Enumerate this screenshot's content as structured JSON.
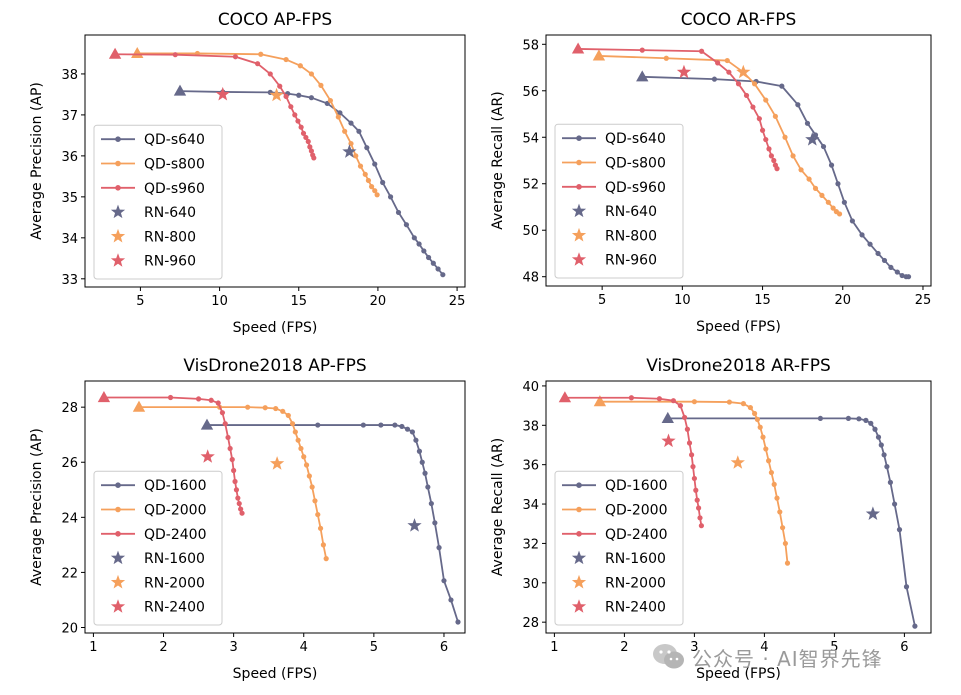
{
  "colors": {
    "s640": "#66698a",
    "s800": "#f5a05c",
    "s960": "#e0606b"
  },
  "watermark": "公众号 · AI智界先锋",
  "chart_data": [
    {
      "type": "line",
      "title": "COCO AP-FPS",
      "xlabel": "Speed (FPS)",
      "ylabel": "Average Precision (AP)",
      "xlim": [
        1.5,
        25.5
      ],
      "ylim": [
        32.8,
        38.95
      ],
      "xticks": [
        5,
        10,
        15,
        20,
        25
      ],
      "xtick_labels": [
        "5",
        "10",
        "15",
        "20",
        "25"
      ],
      "yticks": [
        33,
        34,
        35,
        36,
        37,
        38
      ],
      "ytick_labels": [
        "33",
        "34",
        "35",
        "36",
        "37",
        "38"
      ],
      "legend": "lower-left",
      "series": [
        {
          "name": "QD-s640",
          "color": "#66698a",
          "x": [
            7.5,
            10.2,
            13.2,
            14.3,
            15.0,
            15.8,
            16.8,
            17.6,
            18.3,
            18.8,
            19.3,
            19.8,
            20.3,
            20.8,
            21.3,
            21.8,
            22.3,
            22.6,
            22.9,
            23.2,
            23.5,
            23.8,
            24.1
          ],
          "y": [
            37.58,
            37.56,
            37.55,
            37.52,
            37.48,
            37.42,
            37.28,
            37.05,
            36.8,
            36.6,
            36.2,
            35.8,
            35.35,
            35.0,
            34.62,
            34.32,
            34.0,
            33.85,
            33.68,
            33.52,
            33.38,
            33.24,
            33.1
          ]
        },
        {
          "name": "QD-s800",
          "color": "#f5a05c",
          "x": [
            4.8,
            8.6,
            12.6,
            14.2,
            15.1,
            15.8,
            16.4,
            17.0,
            17.5,
            17.9,
            18.3,
            18.6,
            18.9,
            19.2,
            19.4,
            19.6,
            19.8,
            19.95
          ],
          "y": [
            38.5,
            38.5,
            38.48,
            38.35,
            38.2,
            38.0,
            37.72,
            37.35,
            36.95,
            36.6,
            36.3,
            36.0,
            35.75,
            35.55,
            35.4,
            35.25,
            35.15,
            35.05
          ]
        },
        {
          "name": "QD-s960",
          "color": "#e0606b",
          "x": [
            3.4,
            7.2,
            11.0,
            12.4,
            13.2,
            13.8,
            14.2,
            14.5,
            14.75,
            14.95,
            15.15,
            15.3,
            15.45,
            15.6,
            15.7,
            15.8,
            15.88,
            15.95
          ],
          "y": [
            38.48,
            38.47,
            38.42,
            38.25,
            38.0,
            37.7,
            37.45,
            37.2,
            37.0,
            36.85,
            36.7,
            36.55,
            36.45,
            36.35,
            36.22,
            36.12,
            36.02,
            35.95
          ]
        },
        {
          "name": "RN-640",
          "color": "#66698a",
          "x": [
            18.2
          ],
          "y": [
            36.1
          ]
        },
        {
          "name": "RN-800",
          "color": "#f5a05c",
          "x": [
            13.6
          ],
          "y": [
            37.48
          ]
        },
        {
          "name": "RN-960",
          "color": "#e0606b",
          "x": [
            10.2
          ],
          "y": [
            37.5
          ]
        }
      ]
    },
    {
      "type": "line",
      "title": "COCO AR-FPS",
      "xlabel": "Speed (FPS)",
      "ylabel": "Average Recall (AR)",
      "xlim": [
        1.5,
        25.5
      ],
      "ylim": [
        47.6,
        58.4
      ],
      "xticks": [
        5,
        10,
        15,
        20,
        25
      ],
      "xtick_labels": [
        "5",
        "10",
        "15",
        "20",
        "25"
      ],
      "yticks": [
        48,
        50,
        52,
        54,
        56,
        58
      ],
      "ytick_labels": [
        "48",
        "50",
        "52",
        "54",
        "56",
        "58"
      ],
      "legend": "lower-left",
      "series": [
        {
          "name": "QD-s640",
          "color": "#66698a",
          "x": [
            7.5,
            12.0,
            14.6,
            16.2,
            17.2,
            17.8,
            18.3,
            18.8,
            19.3,
            19.7,
            20.1,
            20.6,
            21.2,
            21.7,
            22.2,
            22.6,
            23.0,
            23.4,
            23.7,
            23.95,
            24.1
          ],
          "y": [
            56.6,
            56.5,
            56.4,
            56.2,
            55.4,
            54.6,
            54.1,
            53.6,
            52.8,
            52.0,
            51.2,
            50.4,
            49.8,
            49.4,
            49.0,
            48.7,
            48.4,
            48.2,
            48.05,
            48.0,
            48.0
          ]
        },
        {
          "name": "QD-s800",
          "color": "#f5a05c",
          "x": [
            4.8,
            9.0,
            12.8,
            13.8,
            14.5,
            15.2,
            15.8,
            16.4,
            16.9,
            17.4,
            17.9,
            18.3,
            18.7,
            19.1,
            19.4,
            19.6,
            19.8
          ],
          "y": [
            57.5,
            57.4,
            57.3,
            56.8,
            56.3,
            55.6,
            54.9,
            54.0,
            53.2,
            52.6,
            52.2,
            51.8,
            51.5,
            51.2,
            50.95,
            50.8,
            50.7
          ]
        },
        {
          "name": "QD-s960",
          "color": "#e0606b",
          "x": [
            3.5,
            7.5,
            11.2,
            12.2,
            12.9,
            13.5,
            14.0,
            14.4,
            14.8,
            15.0,
            15.2,
            15.4,
            15.55,
            15.7,
            15.8,
            15.9
          ],
          "y": [
            57.8,
            57.75,
            57.7,
            57.2,
            56.8,
            56.3,
            55.8,
            55.3,
            54.8,
            54.3,
            53.9,
            53.5,
            53.2,
            53.0,
            52.8,
            52.65
          ]
        },
        {
          "name": "RN-640",
          "color": "#66698a",
          "x": [
            18.1
          ],
          "y": [
            53.9
          ]
        },
        {
          "name": "RN-800",
          "color": "#f5a05c",
          "x": [
            13.8
          ],
          "y": [
            56.8
          ]
        },
        {
          "name": "RN-960",
          "color": "#e0606b",
          "x": [
            10.1
          ],
          "y": [
            56.8
          ]
        }
      ]
    },
    {
      "type": "line",
      "title": "VisDrone2018 AP-FPS",
      "xlabel": "Speed (FPS)",
      "ylabel": "Average Precision (AP)",
      "xlim": [
        0.88,
        6.3
      ],
      "ylim": [
        19.8,
        28.95
      ],
      "xticks": [
        1,
        2,
        3,
        4,
        5,
        6
      ],
      "xtick_labels": [
        "1",
        "2",
        "3",
        "4",
        "5",
        "6"
      ],
      "yticks": [
        20,
        22,
        24,
        26,
        28
      ],
      "ytick_labels": [
        "20",
        "22",
        "24",
        "26",
        "28"
      ],
      "legend": "lower-left",
      "series": [
        {
          "name": "QD-1600",
          "color": "#66698a",
          "x": [
            2.62,
            4.2,
            4.85,
            5.1,
            5.3,
            5.4,
            5.48,
            5.55,
            5.6,
            5.65,
            5.69,
            5.73,
            5.77,
            5.82,
            5.87,
            5.93,
            6.0,
            6.1,
            6.2
          ],
          "y": [
            27.35,
            27.35,
            27.35,
            27.35,
            27.35,
            27.3,
            27.2,
            27.1,
            26.8,
            26.4,
            26.0,
            25.6,
            25.1,
            24.5,
            23.8,
            22.9,
            21.7,
            21.0,
            20.2
          ]
        },
        {
          "name": "QD-2000",
          "color": "#f5a05c",
          "x": [
            1.65,
            2.8,
            3.2,
            3.45,
            3.6,
            3.7,
            3.78,
            3.84,
            3.88,
            3.92,
            3.96,
            4.0,
            4.04,
            4.08,
            4.12,
            4.16,
            4.2,
            4.24,
            4.28,
            4.32
          ],
          "y": [
            28.0,
            28.0,
            28.0,
            27.98,
            27.95,
            27.85,
            27.7,
            27.4,
            27.1,
            26.8,
            26.5,
            26.2,
            25.9,
            25.5,
            25.1,
            24.6,
            24.1,
            23.6,
            23.0,
            22.5
          ]
        },
        {
          "name": "QD-2400",
          "color": "#e0606b",
          "x": [
            1.15,
            2.1,
            2.5,
            2.68,
            2.78,
            2.84,
            2.88,
            2.92,
            2.95,
            2.98,
            3.0,
            3.02,
            3.04,
            3.06,
            3.08,
            3.1,
            3.12
          ],
          "y": [
            28.35,
            28.35,
            28.3,
            28.25,
            28.15,
            27.8,
            27.4,
            26.9,
            26.5,
            26.1,
            25.7,
            25.3,
            25.0,
            24.7,
            24.5,
            24.3,
            24.15
          ]
        },
        {
          "name": "RN-1600",
          "color": "#66698a",
          "x": [
            5.58
          ],
          "y": [
            23.7
          ]
        },
        {
          "name": "RN-2000",
          "color": "#f5a05c",
          "x": [
            3.62
          ],
          "y": [
            25.95
          ]
        },
        {
          "name": "RN-2400",
          "color": "#e0606b",
          "x": [
            2.63
          ],
          "y": [
            26.2
          ]
        }
      ]
    },
    {
      "type": "line",
      "title": "VisDrone2018 AR-FPS",
      "xlabel": "Speed (FPS)",
      "ylabel": "Average Recall (AR)",
      "xlim": [
        0.88,
        6.38
      ],
      "ylim": [
        27.45,
        40.25
      ],
      "xticks": [
        1,
        2,
        3,
        4,
        5,
        6
      ],
      "xtick_labels": [
        "1",
        "2",
        "3",
        "4",
        "5",
        "6"
      ],
      "yticks": [
        28,
        30,
        32,
        34,
        36,
        38,
        40
      ],
      "ytick_labels": [
        "28",
        "30",
        "32",
        "34",
        "36",
        "38",
        "40"
      ],
      "legend": "lower-left",
      "series": [
        {
          "name": "QD-1600",
          "color": "#66698a",
          "x": [
            2.62,
            4.8,
            5.2,
            5.35,
            5.45,
            5.52,
            5.58,
            5.63,
            5.67,
            5.71,
            5.75,
            5.8,
            5.86,
            5.93,
            6.03,
            6.15
          ],
          "y": [
            38.35,
            38.35,
            38.35,
            38.33,
            38.25,
            38.1,
            37.8,
            37.4,
            37.0,
            36.5,
            35.9,
            35.1,
            34.0,
            32.7,
            29.8,
            27.8
          ]
        },
        {
          "name": "QD-2000",
          "color": "#f5a05c",
          "x": [
            1.65,
            3.0,
            3.5,
            3.7,
            3.8,
            3.86,
            3.9,
            3.94,
            3.98,
            4.02,
            4.06,
            4.1,
            4.14,
            4.18,
            4.22,
            4.26,
            4.3,
            4.33
          ],
          "y": [
            39.2,
            39.2,
            39.18,
            39.1,
            38.9,
            38.6,
            38.3,
            37.9,
            37.4,
            36.8,
            36.2,
            35.6,
            35.0,
            34.3,
            33.6,
            32.8,
            32.0,
            31.0
          ]
        },
        {
          "name": "QD-2400",
          "color": "#e0606b",
          "x": [
            1.15,
            2.1,
            2.5,
            2.7,
            2.8,
            2.86,
            2.9,
            2.93,
            2.96,
            2.98,
            3.0,
            3.02,
            3.04,
            3.06,
            3.08,
            3.1
          ],
          "y": [
            39.4,
            39.4,
            39.35,
            39.25,
            39.0,
            38.4,
            37.8,
            37.1,
            36.5,
            35.9,
            35.3,
            34.7,
            34.2,
            33.8,
            33.3,
            32.9
          ]
        },
        {
          "name": "RN-1600",
          "color": "#66698a",
          "x": [
            5.55
          ],
          "y": [
            33.5
          ]
        },
        {
          "name": "RN-2000",
          "color": "#f5a05c",
          "x": [
            3.62
          ],
          "y": [
            36.1
          ]
        },
        {
          "name": "RN-2400",
          "color": "#e0606b",
          "x": [
            2.63
          ],
          "y": [
            37.2
          ]
        }
      ]
    }
  ]
}
